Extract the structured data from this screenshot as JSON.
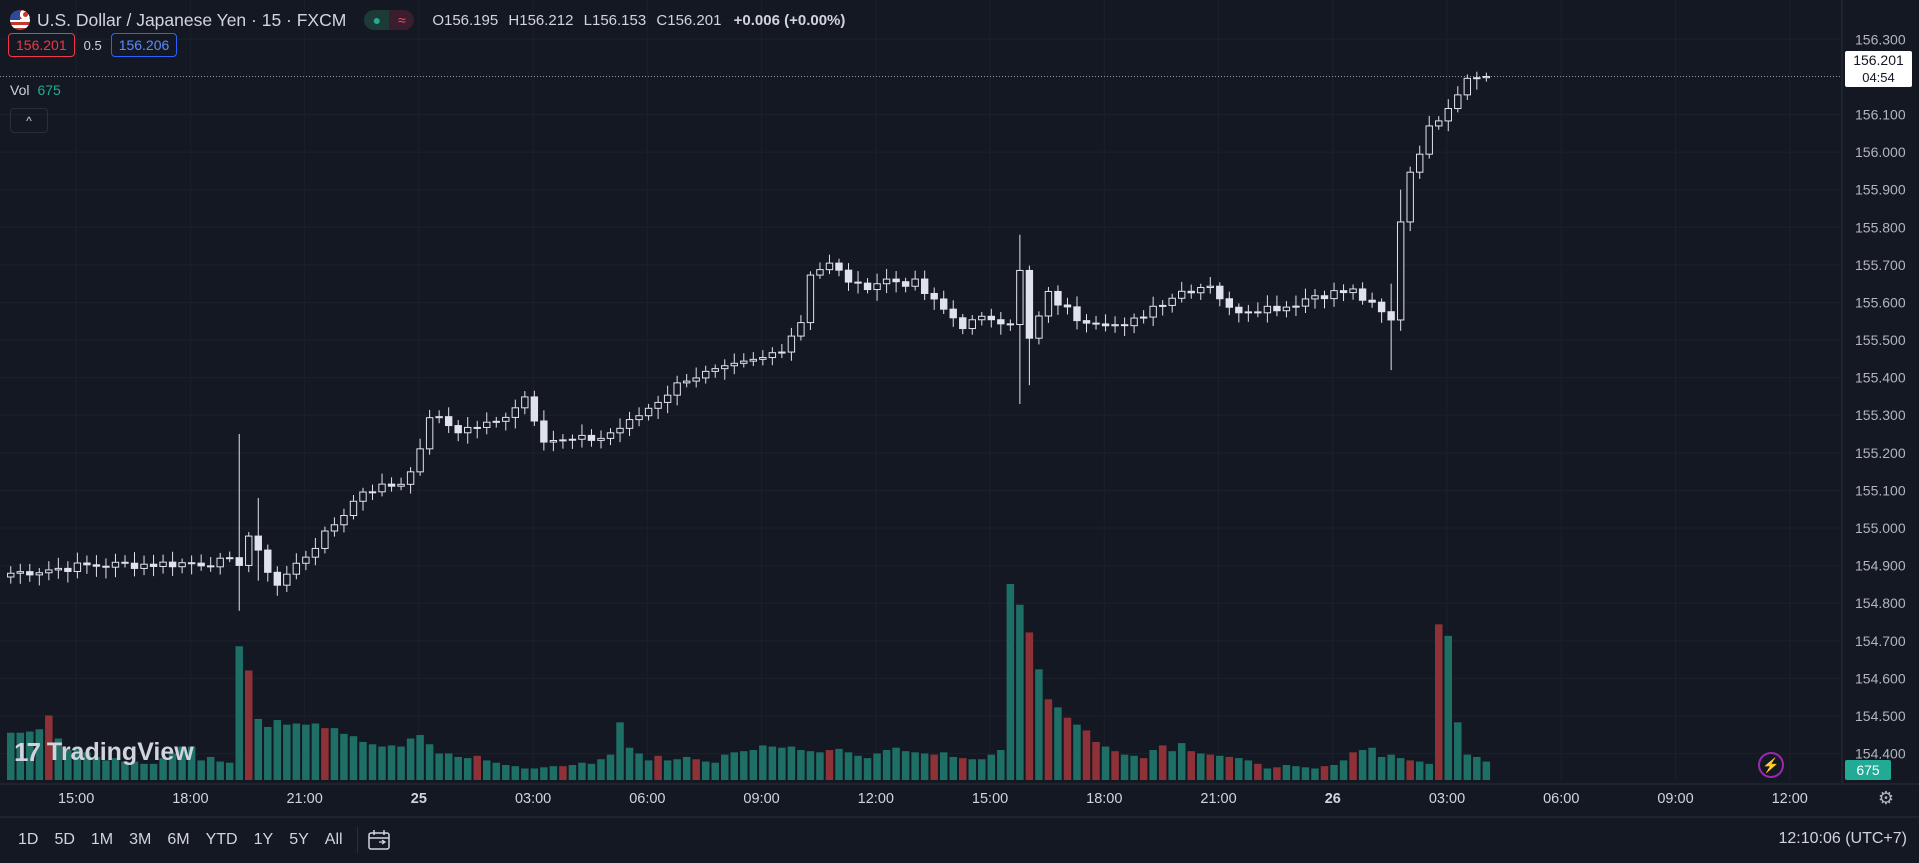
{
  "header": {
    "symbol_title": "U.S. Dollar / Japanese Yen · 15 · FXCM",
    "status_icons": [
      "market-open-dot-icon",
      "delay-wave-icon"
    ],
    "ohlc": {
      "o_label": "O",
      "o": "156.195",
      "h_label": "H",
      "h": "156.212",
      "l_label": "L",
      "l": "156.153",
      "c_label": "C",
      "c": "156.201",
      "change": "+0.006 (+0.00%)"
    }
  },
  "trade": {
    "sell": "156.201",
    "spread": "0.5",
    "buy": "156.206"
  },
  "volume_legend": {
    "label": "Vol",
    "value": "675"
  },
  "collapse_icon": "chevron-up-icon",
  "logo": {
    "text": "TradingView",
    "mark": "17"
  },
  "price_tag": {
    "price": "156.201",
    "countdown": "04:54"
  },
  "volume_tag": "675",
  "bottom_bar": {
    "ranges": [
      "1D",
      "5D",
      "1M",
      "3M",
      "6M",
      "YTD",
      "1Y",
      "5Y",
      "All"
    ],
    "clock": "12:10:06 (UTC+7)"
  },
  "colors": {
    "up": "#22ab94",
    "down": "#f23645",
    "vol_up": "#1e6f66",
    "vol_down": "#8e3238",
    "bg": "#141823",
    "grid": "#1e222d"
  },
  "chart_data": {
    "type": "candlestick",
    "interval_minutes": 15,
    "y_ticks": [
      "156.300",
      "156.100",
      "156.000",
      "155.900",
      "155.800",
      "155.700",
      "155.600",
      "155.500",
      "155.400",
      "155.300",
      "155.200",
      "155.100",
      "155.000",
      "154.900",
      "154.800",
      "154.700",
      "154.600",
      "154.500",
      "154.400"
    ],
    "ylim": [
      154.383,
      156.346
    ],
    "x_tick_labels": [
      "15:00",
      "18:00",
      "21:00",
      "25",
      "03:00",
      "06:00",
      "09:00",
      "12:00",
      "15:00",
      "18:00",
      "21:00",
      "26",
      "03:00",
      "06:00",
      "09:00",
      "12:00"
    ],
    "bold_x_ticks": [
      "25",
      "26"
    ],
    "anchors": [
      [
        0,
        154.88
      ],
      [
        8,
        154.9
      ],
      [
        24,
        154.91
      ],
      [
        25,
        154.98
      ],
      [
        26,
        154.93
      ],
      [
        28,
        154.85
      ],
      [
        33,
        154.98
      ],
      [
        37,
        155.1
      ],
      [
        41,
        155.12
      ],
      [
        43,
        155.2
      ],
      [
        44,
        155.3
      ],
      [
        47,
        155.26
      ],
      [
        51,
        155.28
      ],
      [
        54,
        155.35
      ],
      [
        56,
        155.24
      ],
      [
        58,
        155.23
      ],
      [
        62,
        155.24
      ],
      [
        65,
        155.28
      ],
      [
        68,
        155.34
      ],
      [
        71,
        155.4
      ],
      [
        75,
        155.42
      ],
      [
        79,
        155.45
      ],
      [
        81,
        155.48
      ],
      [
        83,
        155.55
      ],
      [
        84,
        155.68
      ],
      [
        86,
        155.7
      ],
      [
        89,
        155.64
      ],
      [
        92,
        155.66
      ],
      [
        95,
        155.65
      ],
      [
        97,
        155.6
      ],
      [
        100,
        155.54
      ],
      [
        103,
        155.56
      ],
      [
        105,
        155.55
      ],
      [
        106,
        155.68
      ],
      [
        107,
        155.5
      ],
      [
        109,
        155.62
      ],
      [
        112,
        155.56
      ],
      [
        115,
        155.55
      ],
      [
        117,
        155.53
      ],
      [
        118,
        155.55
      ],
      [
        120,
        155.59
      ],
      [
        123,
        155.63
      ],
      [
        126,
        155.65
      ],
      [
        128,
        155.58
      ],
      [
        134,
        155.59
      ],
      [
        137,
        155.62
      ],
      [
        141,
        155.63
      ],
      [
        145,
        155.55
      ],
      [
        146,
        155.82
      ],
      [
        147,
        155.95
      ],
      [
        149,
        156.06
      ],
      [
        152,
        156.16
      ],
      [
        153,
        156.201
      ]
    ],
    "spikes": {
      "24": [
        154.78,
        155.25
      ],
      "26": [
        154.86,
        155.08
      ],
      "106": [
        155.33,
        155.78
      ],
      "107": [
        155.38,
        155.68
      ],
      "145": [
        155.42,
        155.65
      ],
      "146": [
        155.62,
        155.9
      ]
    },
    "volume": {
      "values": [
        41,
        41,
        42,
        44,
        56,
        36,
        26,
        27,
        24,
        20,
        17,
        19,
        16,
        16,
        14,
        14,
        19,
        23,
        29,
        29,
        17,
        20,
        16,
        15,
        116,
        95,
        53,
        46,
        52,
        48,
        49,
        48,
        49,
        45,
        45,
        40,
        38,
        33,
        31,
        29,
        30,
        29,
        36,
        39,
        31,
        23,
        23,
        20,
        19,
        21,
        17,
        15,
        13,
        12,
        10,
        10,
        11,
        12,
        12,
        13,
        15,
        14,
        18,
        22,
        50,
        28,
        23,
        17,
        21,
        17,
        18,
        20,
        18,
        16,
        15,
        22,
        24,
        25,
        26,
        30,
        29,
        28,
        29,
        26,
        25,
        24,
        26,
        27,
        24,
        21,
        19,
        23,
        26,
        28,
        25,
        24,
        23,
        22,
        24,
        20,
        19,
        18,
        18,
        22,
        26,
        170,
        152,
        128,
        96,
        70,
        63,
        54,
        48,
        43,
        33,
        29,
        25,
        22,
        21,
        19,
        26,
        30,
        25,
        32,
        25,
        23,
        22,
        21,
        20,
        19,
        17,
        14,
        10,
        11,
        13,
        12,
        11,
        10,
        12,
        13,
        17,
        24,
        26,
        28,
        20,
        22,
        19,
        17,
        16,
        14,
        135,
        125,
        50,
        22,
        20,
        16
      ],
      "down_idx": [
        4,
        25,
        33,
        49,
        58,
        68,
        72,
        86,
        97,
        100,
        107,
        109,
        111,
        113,
        114,
        116,
        119,
        121,
        124,
        126,
        128,
        131,
        133,
        138,
        141,
        147,
        150
      ]
    },
    "volume_max_ref": 170,
    "current_price": 156.201
  }
}
